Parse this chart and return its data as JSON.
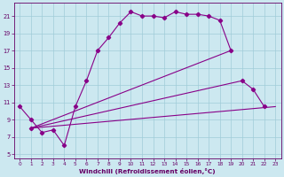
{
  "background_color": "#cce8f0",
  "grid_color": "#a0ccd8",
  "line_color": "#880088",
  "marker": "D",
  "marker_size": 2.2,
  "line_width": 0.8,
  "xlabel": "Windchill (Refroidissement éolien,°C)",
  "xlabel_color": "#660066",
  "tick_color": "#660066",
  "xlim": [
    -0.5,
    23.5
  ],
  "ylim": [
    4.5,
    22.5
  ],
  "xticks": [
    0,
    1,
    2,
    3,
    4,
    5,
    6,
    7,
    8,
    9,
    10,
    11,
    12,
    13,
    14,
    15,
    16,
    17,
    18,
    19,
    20,
    21,
    22,
    23
  ],
  "yticks": [
    5,
    7,
    9,
    11,
    13,
    15,
    17,
    19,
    21
  ],
  "line1_x": [
    0,
    1,
    2,
    3,
    4,
    5,
    6,
    7,
    8,
    9,
    10,
    11,
    12,
    13,
    14,
    15,
    16,
    17,
    18,
    19
  ],
  "line1_y": [
    10.5,
    9.0,
    7.5,
    7.8,
    6.0,
    10.5,
    13.5,
    17.0,
    18.5,
    20.2,
    21.5,
    21.0,
    21.0,
    20.8,
    21.5,
    21.2,
    21.2,
    21.0,
    20.5,
    17.0
  ],
  "line2_x": [
    1,
    19
  ],
  "line2_y": [
    8.0,
    17.0
  ],
  "line3_x": [
    1,
    20,
    21,
    22
  ],
  "line3_y": [
    8.0,
    13.5,
    12.5,
    10.5
  ],
  "line4_x": [
    1,
    23
  ],
  "line4_y": [
    8.0,
    10.5
  ]
}
